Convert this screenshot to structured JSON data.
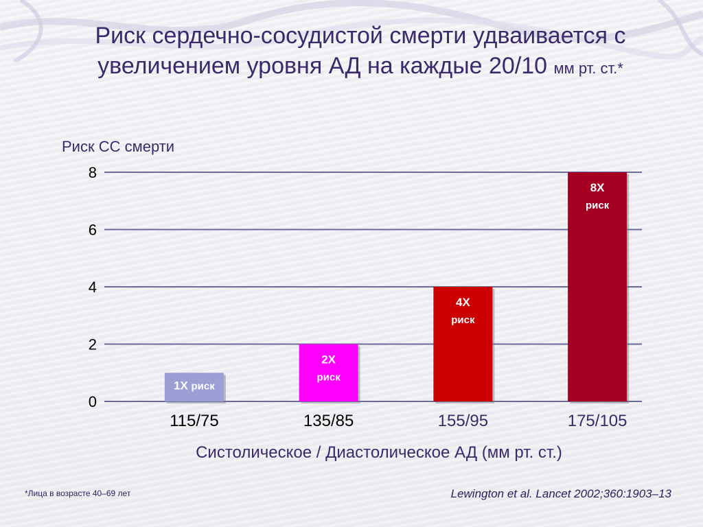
{
  "slide": {
    "title_main": "Риск сердечно-сосудистой смерти удваивается с увеличением уровня АД на каждые 20/10",
    "title_unit": "мм рт. ст.*",
    "footnote": "*Лица в возрасте 40–69 лет",
    "citation": "Lewington et al. Lancet 2002;360:1903–13"
  },
  "chart_data": {
    "type": "bar",
    "categories": [
      "115/75",
      "135/85",
      "155/95",
      "175/105"
    ],
    "values": [
      1,
      2,
      4,
      8
    ],
    "bar_labels": [
      {
        "top": "1X",
        "bottom": "риск"
      },
      {
        "top": "2X",
        "bottom": "риск"
      },
      {
        "top": "4X",
        "bottom": "риск"
      },
      {
        "top": "8X",
        "bottom": "риск"
      }
    ],
    "bar_colors": [
      "#9b9fd6",
      "#ff00ff",
      "#cc0000",
      "#a50021"
    ],
    "category_label_colors": [
      "#000000",
      "#000000",
      "#3b2a6b",
      "#3b2a6b"
    ],
    "ylabel": "Риск СС смерти",
    "xlabel": "Систолическое / Диастолическое АД (мм рт. ст.)",
    "ylim": [
      0,
      8
    ],
    "yticks": [
      0,
      2,
      4,
      6,
      8
    ],
    "grid": true,
    "gridline_color": "#6b6b9a"
  }
}
